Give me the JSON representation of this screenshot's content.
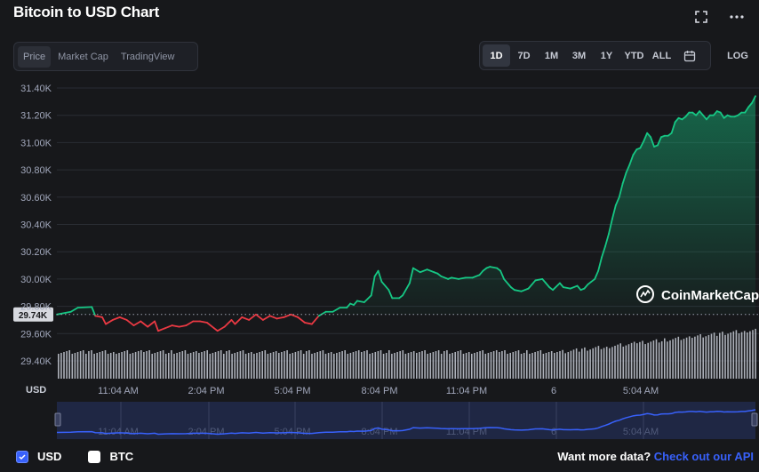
{
  "title": "Bitcoin to USD Chart",
  "icons": {
    "fullscreen": "fullscreen-icon",
    "more": "more-icon",
    "calendar": "calendar-icon",
    "watermark_logo": "coinmarketcap-logo"
  },
  "view_tabs": [
    {
      "label": "Price",
      "active": true
    },
    {
      "label": "Market Cap",
      "active": false
    },
    {
      "label": "TradingView",
      "active": false
    }
  ],
  "range_tabs": [
    {
      "label": "1D",
      "active": true
    },
    {
      "label": "7D",
      "active": false
    },
    {
      "label": "1M",
      "active": false
    },
    {
      "label": "3M",
      "active": false
    },
    {
      "label": "1Y",
      "active": false
    },
    {
      "label": "YTD",
      "active": false
    },
    {
      "label": "ALL",
      "active": false
    }
  ],
  "log_label": "LOG",
  "watermark": "CoinMarketCap",
  "legend": {
    "usd": "USD",
    "btc": "BTC"
  },
  "api": {
    "text": "Want more data?",
    "link": "Check out our API"
  },
  "colors": {
    "up": "#16c784",
    "down": "#ea3943",
    "accent": "#3861fb",
    "background": "#17181b"
  },
  "chart_data": {
    "type": "line",
    "unit_label": "USD",
    "y_ticks": [
      "29.40K",
      "29.60K",
      "29.80K",
      "30.00K",
      "30.20K",
      "30.40K",
      "30.60K",
      "30.80K",
      "31.00K",
      "31.20K",
      "31.40K"
    ],
    "ylim": [
      29400,
      31400
    ],
    "baseline": {
      "value": 29740,
      "label": "29.74K"
    },
    "x_ticks": [
      "11:04 AM",
      "2:04 PM",
      "5:04 PM",
      "8:04 PM",
      "11:04 PM",
      "6",
      "5:04 AM"
    ],
    "grid": true,
    "price_series": [
      [
        0,
        29740
      ],
      [
        4,
        29760
      ],
      [
        6,
        29790
      ],
      [
        10,
        29795
      ],
      [
        11,
        29730
      ],
      [
        13,
        29720
      ],
      [
        14,
        29670
      ],
      [
        16,
        29700
      ],
      [
        18,
        29720
      ],
      [
        20,
        29700
      ],
      [
        22,
        29660
      ],
      [
        24,
        29690
      ],
      [
        26,
        29650
      ],
      [
        28,
        29690
      ],
      [
        29,
        29620
      ],
      [
        31,
        29640
      ],
      [
        33,
        29660
      ],
      [
        35,
        29650
      ],
      [
        37,
        29660
      ],
      [
        39,
        29690
      ],
      [
        41,
        29690
      ],
      [
        43,
        29680
      ],
      [
        45,
        29640
      ],
      [
        46,
        29620
      ],
      [
        48,
        29650
      ],
      [
        50,
        29700
      ],
      [
        51,
        29670
      ],
      [
        53,
        29720
      ],
      [
        55,
        29700
      ],
      [
        57,
        29740
      ],
      [
        59,
        29700
      ],
      [
        61,
        29730
      ],
      [
        63,
        29710
      ],
      [
        65,
        29720
      ],
      [
        67,
        29740
      ],
      [
        69,
        29720
      ],
      [
        71,
        29680
      ],
      [
        73,
        29670
      ],
      [
        75,
        29730
      ],
      [
        77,
        29760
      ],
      [
        79,
        29760
      ],
      [
        81,
        29790
      ],
      [
        83,
        29790
      ],
      [
        84,
        29820
      ],
      [
        85,
        29810
      ],
      [
        86,
        29840
      ],
      [
        88,
        29830
      ],
      [
        90,
        29880
      ],
      [
        91,
        30020
      ],
      [
        92,
        30060
      ],
      [
        93,
        29980
      ],
      [
        95,
        29920
      ],
      [
        96,
        29860
      ],
      [
        98,
        29860
      ],
      [
        99,
        29880
      ],
      [
        101,
        29970
      ],
      [
        102,
        30080
      ],
      [
        104,
        30050
      ],
      [
        106,
        30070
      ],
      [
        108,
        30050
      ],
      [
        109,
        30040
      ],
      [
        110,
        30020
      ],
      [
        112,
        30000
      ],
      [
        113,
        30010
      ],
      [
        115,
        30000
      ],
      [
        117,
        30010
      ],
      [
        119,
        30010
      ],
      [
        121,
        30030
      ],
      [
        122,
        30060
      ],
      [
        123,
        30080
      ],
      [
        124,
        30090
      ],
      [
        126,
        30080
      ],
      [
        127,
        30060
      ],
      [
        128,
        30000
      ],
      [
        130,
        29940
      ],
      [
        131,
        29920
      ],
      [
        133,
        29910
      ],
      [
        135,
        29930
      ],
      [
        136,
        29960
      ],
      [
        137,
        29990
      ],
      [
        139,
        30000
      ],
      [
        140,
        29970
      ],
      [
        141,
        29940
      ],
      [
        142,
        29920
      ],
      [
        144,
        29970
      ],
      [
        145,
        29940
      ],
      [
        147,
        29930
      ],
      [
        149,
        29950
      ],
      [
        150,
        29920
      ],
      [
        151,
        29930
      ],
      [
        152,
        29960
      ],
      [
        153,
        29980
      ],
      [
        154,
        30000
      ],
      [
        155,
        30060
      ],
      [
        156,
        30160
      ],
      [
        157,
        30240
      ],
      [
        158,
        30330
      ],
      [
        159,
        30440
      ],
      [
        160,
        30540
      ],
      [
        161,
        30600
      ],
      [
        162,
        30700
      ],
      [
        163,
        30780
      ],
      [
        164,
        30840
      ],
      [
        165,
        30910
      ],
      [
        166,
        30950
      ],
      [
        167,
        30960
      ],
      [
        168,
        31010
      ],
      [
        169,
        31070
      ],
      [
        170,
        31040
      ],
      [
        171,
        30970
      ],
      [
        172,
        30980
      ],
      [
        173,
        31040
      ],
      [
        174,
        31050
      ],
      [
        175,
        31050
      ],
      [
        176,
        31070
      ],
      [
        177,
        31150
      ],
      [
        178,
        31180
      ],
      [
        179,
        31170
      ],
      [
        180,
        31190
      ],
      [
        181,
        31220
      ],
      [
        182,
        31220
      ],
      [
        183,
        31200
      ],
      [
        184,
        31230
      ],
      [
        185,
        31200
      ],
      [
        186,
        31170
      ],
      [
        187,
        31200
      ],
      [
        188,
        31200
      ],
      [
        189,
        31230
      ],
      [
        190,
        31220
      ],
      [
        191,
        31180
      ],
      [
        192,
        31200
      ],
      [
        193,
        31190
      ],
      [
        194,
        31190
      ],
      [
        195,
        31200
      ],
      [
        196,
        31220
      ],
      [
        197,
        31220
      ],
      [
        198,
        31260
      ],
      [
        199,
        31290
      ],
      [
        200,
        31340
      ]
    ]
  }
}
